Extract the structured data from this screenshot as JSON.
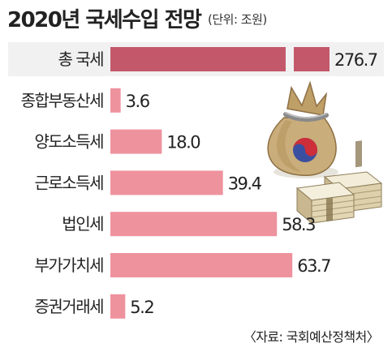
{
  "header": {
    "title": "2020년 국세수입 전망",
    "unit": "(단위: 조원)"
  },
  "footer": {
    "source": "〈자료: 국회예산정책처〉"
  },
  "colors": {
    "highlight_band": "#f1f1f1",
    "total_bar": "#c4586b",
    "bar": "#ee929e",
    "text": "#222222"
  },
  "chart_data": {
    "type": "bar",
    "orientation": "horizontal",
    "title": "2020년 국세수입 전망",
    "unit": "조원",
    "categories": [
      "총 국세",
      "종합부동산세",
      "양도소득세",
      "근로소득세",
      "법인세",
      "부가가치세",
      "증권거래세"
    ],
    "values": [
      276.7,
      3.6,
      18.0,
      39.4,
      58.3,
      63.7,
      5.2
    ],
    "value_labels": [
      "276.7",
      "3.6",
      "18.0",
      "39.4",
      "58.3",
      "63.7",
      "5.2"
    ],
    "total_axis_break": true,
    "highlight": "총 국세",
    "grid": false,
    "legend": "none",
    "decoration": "money-bag-icon"
  }
}
